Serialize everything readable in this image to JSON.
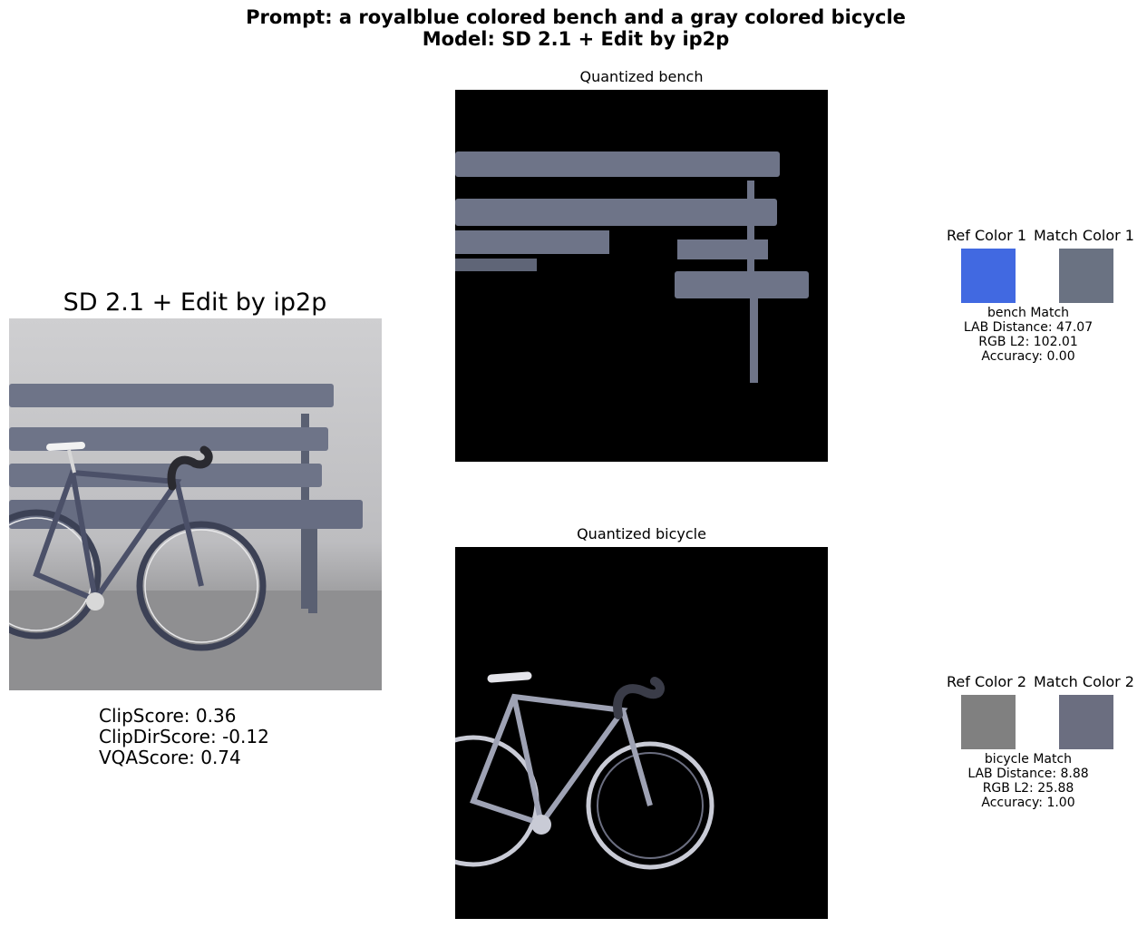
{
  "header": {
    "prompt_line": "Prompt: a royalblue colored bench and a gray colored bicycle",
    "model_line": "Model: SD 2.1 + Edit by ip2p"
  },
  "left_panel": {
    "title": "SD 2.1 + Edit by ip2p",
    "scores": {
      "clip": "ClipScore: 0.36",
      "clip_dir": "ClipDirScore: -0.12",
      "vqa": "VQAScore: 0.74"
    }
  },
  "quantized": [
    {
      "title": "Quantized bench"
    },
    {
      "title": "Quantized bicycle"
    }
  ],
  "color_matches": [
    {
      "ref_label": "Ref Color 1",
      "match_label": "Match Color 1",
      "ref_color": "#4169e1",
      "match_color": "#6a7282",
      "match_title": "bench Match",
      "lab_distance": "LAB Distance: 47.07",
      "rgb_l2": "RGB L2: 102.01",
      "accuracy": "Accuracy: 0.00"
    },
    {
      "ref_label": "Ref Color 2",
      "match_label": "Match Color 2",
      "ref_color": "#808080",
      "match_color": "#6b6e80",
      "match_title": "bicycle Match",
      "lab_distance": "LAB Distance: 8.88",
      "rgb_l2": "RGB L2: 25.88",
      "accuracy": "Accuracy: 1.00"
    }
  ]
}
